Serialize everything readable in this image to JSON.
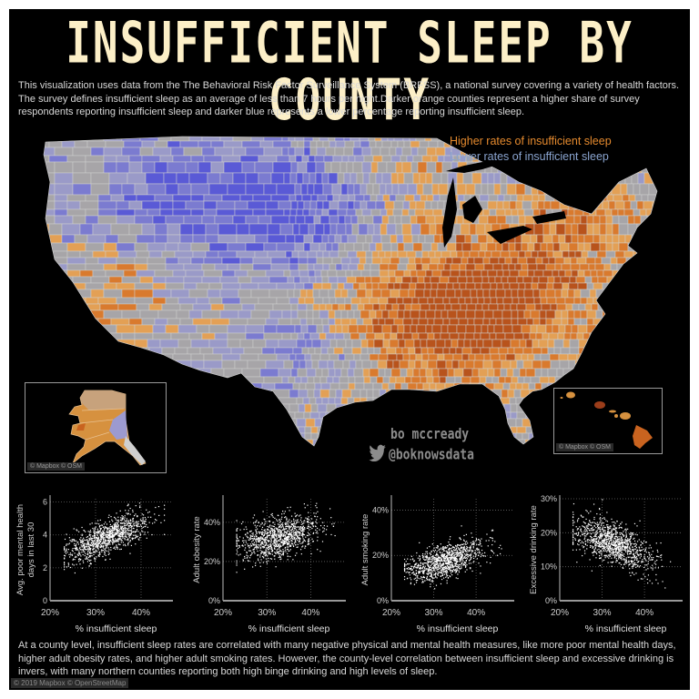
{
  "title": "INSUFFICIENT SLEEP BY COUNTY",
  "intro": "This visualization uses data from the The Behavioral Risk Factor Surveillance System (BRFSS), a national survey covering a variety of health factors. The survey defines insufficient sleep as an average of less than 7 hours per night.Darker orange counties represent a higher share of survey respondents reporting insufficient sleep and darker blue represents a lower percentage reporting insufficient sleep.",
  "legend": {
    "high": "Higher rates of insufficient sleep",
    "low": "Lower rates of insufficient sleep",
    "high_color": "#e58a2e",
    "low_color": "#8aa4cf"
  },
  "map": {
    "alaska_credit": "© Mapbox © OSM",
    "hawaii_credit": "© Mapbox © OSM",
    "colors": {
      "dark_orange": "#b8531c",
      "orange": "#d97a2e",
      "light_orange": "#e3a055",
      "neutral": "#a7a5a8",
      "light_blue": "#9a9ac8",
      "blue": "#7b7bd0",
      "dark_blue": "#5a5ad6"
    }
  },
  "author": {
    "name": "bo mccready",
    "handle": "@boknowsdata",
    "icon": "twitter-bird-icon"
  },
  "outro": "At a county level, insufficient sleep rates are correlated with many negative physical and mental health measures, like more poor mental health days, higher adult obesity rates, and higher adult smoking rates. However, the county-level correlation between insufficient sleep and excessive drinking is invers, with many northern counties reporting both high binge drinking and high levels of sleep.",
  "footer_credit": "© 2019 Mapbox © OpenStreetMap",
  "chart_data": [
    {
      "type": "scatter",
      "title": "",
      "xlabel": "% insufficient sleep",
      "ylabel": "Avg. poor mental health days in last 30",
      "x_ticks": [
        "20%",
        "30%",
        "40%"
      ],
      "y_ticks": [
        "0",
        "2",
        "4",
        "6"
      ],
      "xlim": [
        0.2,
        0.47
      ],
      "ylim": [
        0,
        6.2
      ],
      "grid": true,
      "trend": "positive",
      "cloud": {
        "x_range": [
          0.23,
          0.45
        ],
        "y_center_at_x": [
          [
            0.24,
            2.9
          ],
          [
            0.3,
            3.6
          ],
          [
            0.35,
            4.2
          ],
          [
            0.4,
            4.7
          ]
        ],
        "y_spread": 0.5
      }
    },
    {
      "type": "scatter",
      "title": "",
      "xlabel": "% insufficient sleep",
      "ylabel": "Adult obesity rate",
      "x_ticks": [
        "20%",
        "30%",
        "40%"
      ],
      "y_ticks": [
        "0%",
        "20%",
        "40%"
      ],
      "xlim": [
        0.2,
        0.48
      ],
      "ylim": [
        0,
        0.52
      ],
      "grid": true,
      "trend": "positive",
      "cloud": {
        "x_range": [
          0.23,
          0.47
        ],
        "y_center_at_x": [
          [
            0.24,
            0.29
          ],
          [
            0.3,
            0.31
          ],
          [
            0.35,
            0.34
          ],
          [
            0.4,
            0.37
          ]
        ],
        "y_spread": 0.05
      }
    },
    {
      "type": "scatter",
      "title": "",
      "xlabel": "% insufficient sleep",
      "ylabel": "Adult smoking rate",
      "x_ticks": [
        "20%",
        "30%",
        "40%"
      ],
      "y_ticks": [
        "0%",
        "20%",
        "40%"
      ],
      "xlim": [
        0.2,
        0.49
      ],
      "ylim": [
        0,
        0.45
      ],
      "grid": true,
      "trend": "positive",
      "cloud": {
        "x_range": [
          0.23,
          0.46
        ],
        "y_center_at_x": [
          [
            0.24,
            0.14
          ],
          [
            0.3,
            0.16
          ],
          [
            0.35,
            0.19
          ],
          [
            0.4,
            0.22
          ]
        ],
        "y_spread": 0.035
      }
    },
    {
      "type": "scatter",
      "title": "",
      "xlabel": "% insufficient sleep",
      "ylabel": "Excessive drinking rate",
      "x_ticks": [
        "20%",
        "30%",
        "40%"
      ],
      "y_ticks": [
        "0%",
        "10%",
        "20%",
        "30%"
      ],
      "xlim": [
        0.2,
        0.49
      ],
      "ylim": [
        0,
        0.3
      ],
      "grid": true,
      "trend": "negative",
      "cloud": {
        "x_range": [
          0.23,
          0.46
        ],
        "y_center_at_x": [
          [
            0.24,
            0.2
          ],
          [
            0.3,
            0.185
          ],
          [
            0.35,
            0.16
          ],
          [
            0.4,
            0.13
          ]
        ],
        "y_spread": 0.03
      }
    }
  ]
}
